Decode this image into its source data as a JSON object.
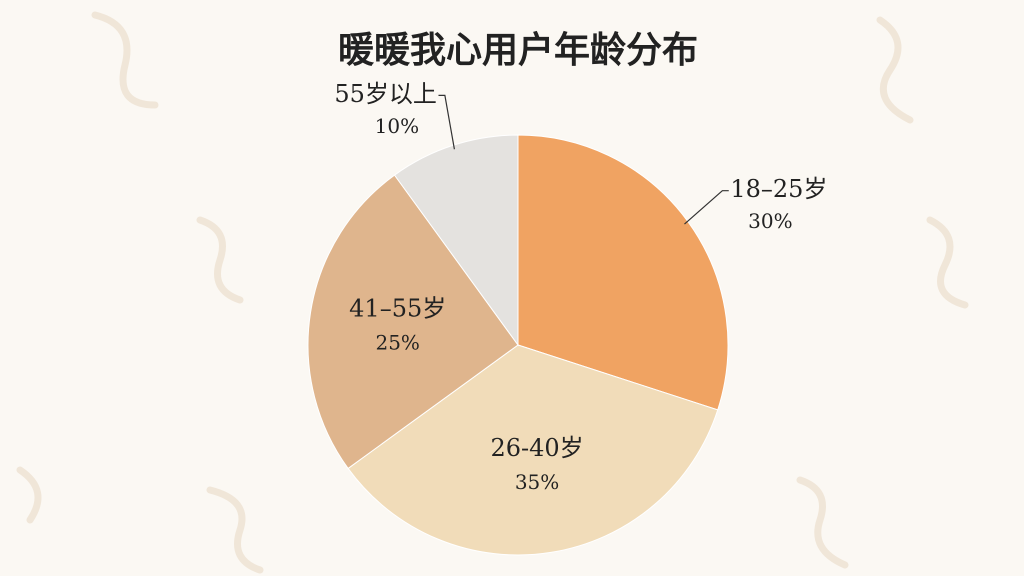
{
  "chart_data": {
    "type": "pie",
    "title": "暖暖我心用户年龄分布",
    "categories": [
      "18–25岁",
      "26-40岁",
      "41–55岁",
      "55岁以上"
    ],
    "values": [
      30,
      35,
      25,
      10
    ],
    "value_labels": [
      "30%",
      "35%",
      "25%",
      "10%"
    ],
    "colors": [
      "#f0a362",
      "#f1dcb9",
      "#dfb58d",
      "#e4e2df"
    ]
  }
}
